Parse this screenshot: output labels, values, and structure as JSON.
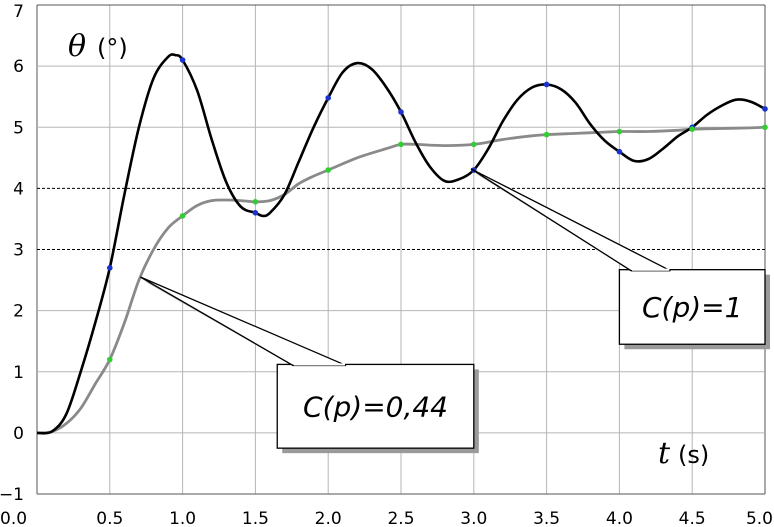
{
  "chart_data": {
    "type": "line",
    "title": "",
    "xlabel": "t",
    "xunit": "(s)",
    "ylabel": "θ",
    "yunit": "(°)",
    "xlim": [
      0,
      5
    ],
    "ylim": [
      -1,
      7
    ],
    "xticks": [
      "0.0",
      "0.5",
      "1.0",
      "1.5",
      "2.0",
      "2.5",
      "3.0",
      "3.5",
      "4.0",
      "4.5",
      "5.0"
    ],
    "yticks": [
      "−1",
      "0",
      "1",
      "2",
      "3",
      "4",
      "5",
      "6",
      "7"
    ],
    "grid": true,
    "legend": "none",
    "series": [
      {
        "name": "C(p)=1",
        "color": "#000000",
        "x": [
          0,
          0.1,
          0.2,
          0.3,
          0.4,
          0.5,
          0.6,
          0.7,
          0.8,
          0.9,
          0.95,
          1.0,
          1.1,
          1.2,
          1.3,
          1.4,
          1.5,
          1.55,
          1.6,
          1.7,
          1.8,
          1.9,
          2.0,
          2.1,
          2.2,
          2.3,
          2.4,
          2.5,
          2.6,
          2.7,
          2.8,
          2.9,
          3.0,
          3.1,
          3.2,
          3.3,
          3.4,
          3.5,
          3.6,
          3.7,
          3.8,
          3.9,
          4.0,
          4.1,
          4.2,
          4.3,
          4.4,
          4.5,
          4.6,
          4.7,
          4.8,
          4.9,
          5.0
        ],
        "y": [
          0,
          0.02,
          0.3,
          1.0,
          1.8,
          2.7,
          3.9,
          5.0,
          5.8,
          6.15,
          6.18,
          6.1,
          5.6,
          4.8,
          4.1,
          3.7,
          3.6,
          3.55,
          3.6,
          3.9,
          4.45,
          5.0,
          5.48,
          5.9,
          6.05,
          5.95,
          5.65,
          5.25,
          4.75,
          4.35,
          4.12,
          4.15,
          4.3,
          4.65,
          5.1,
          5.45,
          5.65,
          5.7,
          5.62,
          5.4,
          5.05,
          4.78,
          4.6,
          4.45,
          4.48,
          4.65,
          4.85,
          5.0,
          5.2,
          5.35,
          5.45,
          5.42,
          5.3
        ]
      },
      {
        "name": "C(p)=0,44",
        "color": "#8a8a8a",
        "x": [
          0,
          0.1,
          0.2,
          0.3,
          0.4,
          0.5,
          0.6,
          0.7,
          0.8,
          0.9,
          1.0,
          1.1,
          1.2,
          1.3,
          1.4,
          1.5,
          1.6,
          1.7,
          1.8,
          1.9,
          2.0,
          2.2,
          2.4,
          2.5,
          2.6,
          2.8,
          3.0,
          3.2,
          3.4,
          3.5,
          3.7,
          3.9,
          4.0,
          4.2,
          4.4,
          4.5,
          4.7,
          4.9,
          5.0
        ],
        "y": [
          0,
          0.02,
          0.15,
          0.4,
          0.8,
          1.2,
          1.8,
          2.5,
          3.0,
          3.35,
          3.55,
          3.72,
          3.8,
          3.81,
          3.8,
          3.78,
          3.8,
          3.9,
          4.08,
          4.2,
          4.3,
          4.5,
          4.65,
          4.72,
          4.72,
          4.7,
          4.72,
          4.8,
          4.86,
          4.88,
          4.9,
          4.92,
          4.93,
          4.93,
          4.95,
          4.97,
          4.98,
          4.99,
          5.0
        ]
      }
    ],
    "markers": [
      {
        "series": "C(p)=1",
        "color": "#1a33cc",
        "x": [
          0.5,
          1.0,
          1.5,
          2.0,
          2.5,
          3.0,
          3.5,
          4.0,
          4.5,
          5.0
        ],
        "y": [
          2.7,
          6.1,
          3.6,
          5.48,
          5.25,
          4.3,
          5.7,
          4.6,
          5.0,
          5.3
        ]
      },
      {
        "series": "C(p)=0,44",
        "color": "#33cc33",
        "x": [
          0.5,
          1.0,
          1.5,
          2.0,
          2.5,
          3.0,
          3.5,
          4.0,
          4.5,
          5.0
        ],
        "y": [
          1.2,
          3.55,
          3.78,
          4.3,
          4.72,
          4.72,
          4.88,
          4.93,
          4.97,
          5.0
        ]
      }
    ],
    "annotations": [
      {
        "text": "C(p)=1",
        "target": [
          2.98,
          4.32
        ],
        "box": [
          [
            4.0,
            2.67
          ],
          [
            5.0,
            1.45
          ]
        ]
      },
      {
        "text": "C(p)=0,44",
        "target": [
          0.71,
          2.55
        ],
        "box": [
          [
            1.65,
            1.12
          ],
          [
            3.0,
            -0.25
          ]
        ]
      }
    ]
  }
}
